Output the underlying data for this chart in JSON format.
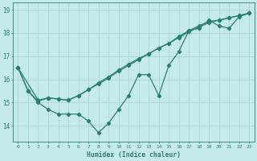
{
  "xlabel": "Humidex (Indice chaleur)",
  "bg_color": "#c5eaea",
  "line_color": "#2a8070",
  "grid_color": "#b0d8d8",
  "xlim": [
    -0.5,
    23.5
  ],
  "ylim": [
    13.3,
    19.3
  ],
  "yticks": [
    14,
    15,
    16,
    17,
    18,
    19
  ],
  "xticks": [
    0,
    1,
    2,
    3,
    4,
    5,
    6,
    7,
    8,
    9,
    10,
    11,
    12,
    13,
    14,
    15,
    16,
    17,
    18,
    19,
    20,
    21,
    22,
    23
  ],
  "line1_x": [
    0,
    1,
    2,
    3,
    4,
    5,
    6,
    7,
    8,
    9,
    10,
    11,
    12,
    13,
    14,
    15,
    16,
    17,
    18,
    19,
    20,
    21,
    22,
    23
  ],
  "line1_y": [
    16.5,
    15.5,
    15.0,
    14.7,
    14.5,
    14.5,
    14.5,
    14.2,
    13.7,
    14.1,
    14.7,
    15.3,
    16.2,
    16.2,
    15.3,
    16.6,
    17.2,
    18.1,
    18.2,
    18.55,
    18.3,
    18.2,
    18.7,
    18.85
  ],
  "line2_x": [
    0,
    2,
    3,
    4,
    5,
    6,
    7,
    8,
    9,
    10,
    11,
    12,
    13,
    14,
    15,
    16,
    17,
    18,
    19,
    20,
    21,
    22,
    23
  ],
  "line2_y": [
    16.5,
    15.1,
    15.2,
    15.15,
    15.1,
    15.3,
    15.55,
    15.8,
    16.05,
    16.35,
    16.6,
    16.85,
    17.1,
    17.35,
    17.55,
    17.8,
    18.05,
    18.25,
    18.45,
    18.55,
    18.65,
    18.75,
    18.85
  ],
  "line3_x": [
    0,
    1,
    2,
    3,
    4,
    5,
    6,
    7,
    8,
    9,
    10,
    11,
    12,
    13,
    14,
    15,
    16,
    17,
    18,
    19,
    20,
    21,
    22,
    23
  ],
  "line3_y": [
    16.5,
    15.5,
    15.05,
    15.2,
    15.15,
    15.1,
    15.3,
    15.55,
    15.85,
    16.1,
    16.4,
    16.65,
    16.9,
    17.1,
    17.35,
    17.55,
    17.85,
    18.1,
    18.3,
    18.5,
    18.55,
    18.65,
    18.75,
    18.85
  ]
}
